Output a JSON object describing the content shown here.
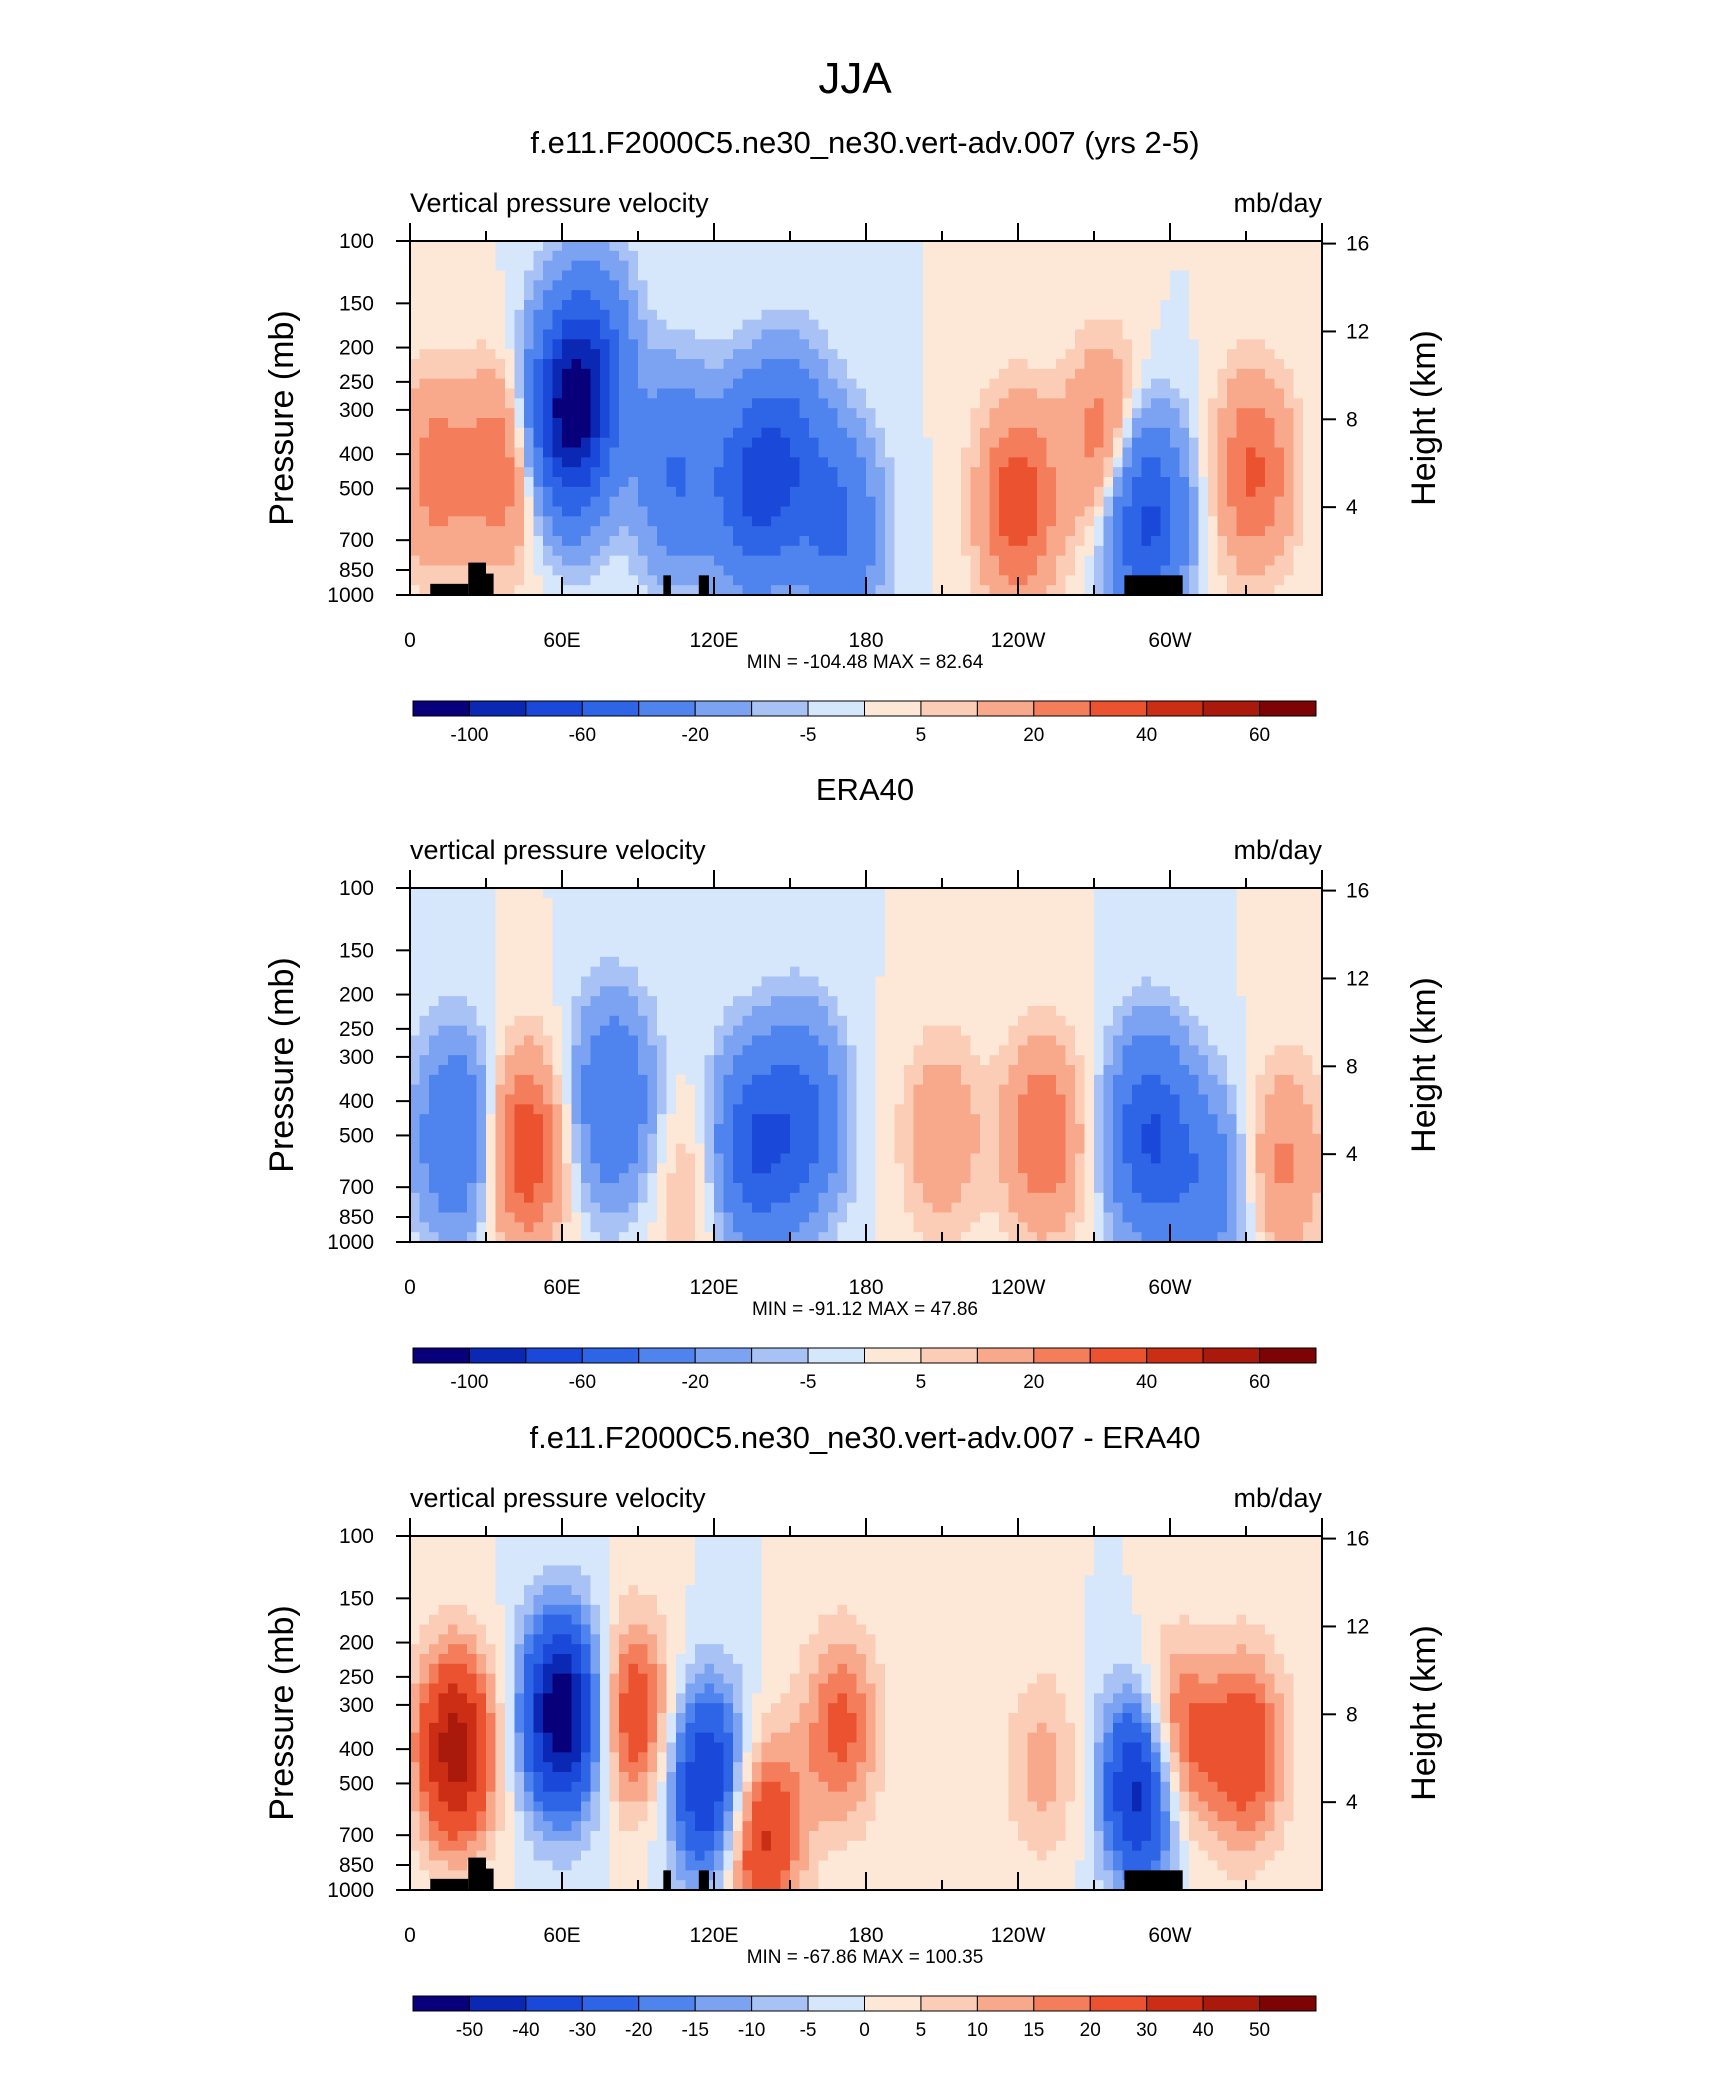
{
  "title": "JJA",
  "chart_data": [
    {
      "type": "heatmap",
      "title": "f.e11.F2000C5.ne30_ne30.vert-adv.007 (yrs 2-5)",
      "left_label": "Vertical pressure velocity",
      "right_label": "mb/day",
      "xlabel": "",
      "ylabel": "Pressure (mb)",
      "y2label": "Height (km)",
      "x_ticks": [
        "0",
        "60E",
        "120E",
        "180",
        "120W",
        "60W"
      ],
      "x_range": [
        0,
        360
      ],
      "y_ticks": [
        "100",
        "150",
        "200",
        "250",
        "300",
        "400",
        "500",
        "700",
        "850",
        "1000"
      ],
      "y_range": [
        1000,
        100
      ],
      "y_scale": "log",
      "y2_ticks": [
        "16",
        "12",
        "8",
        "4"
      ],
      "stats_text": "MIN = -104.48  MAX =  82.64",
      "min": -104.48,
      "max": 82.64,
      "colorbar_labels": [
        "-100",
        "-60",
        "-20",
        "-5",
        "5",
        "20",
        "40",
        "60"
      ],
      "colorbar_levels": [
        -120,
        -100,
        -80,
        -60,
        -40,
        -20,
        -10,
        -5,
        0,
        5,
        10,
        20,
        30,
        40,
        50,
        60,
        70
      ],
      "features": [
        {
          "lon": 10,
          "p": 450,
          "value": 25
        },
        {
          "lon": 38,
          "p": 430,
          "value": 30
        },
        {
          "lon": 62,
          "p": 320,
          "value": -95
        },
        {
          "lon": 72,
          "p": 220,
          "value": -45
        },
        {
          "lon": 105,
          "p": 450,
          "value": -40
        },
        {
          "lon": 135,
          "p": 500,
          "value": -55
        },
        {
          "lon": 150,
          "p": 400,
          "value": -40
        },
        {
          "lon": 170,
          "p": 650,
          "value": -40
        },
        {
          "lon": 240,
          "p": 550,
          "value": 38
        },
        {
          "lon": 275,
          "p": 380,
          "value": 32
        },
        {
          "lon": 290,
          "p": 600,
          "value": -70
        },
        {
          "lon": 333,
          "p": 450,
          "value": 32
        }
      ]
    },
    {
      "type": "heatmap",
      "title": "ERA40",
      "left_label": "vertical pressure velocity",
      "right_label": "mb/day",
      "xlabel": "",
      "ylabel": "Pressure (mb)",
      "y2label": "Height (km)",
      "x_ticks": [
        "0",
        "60E",
        "120E",
        "180",
        "120W",
        "60W"
      ],
      "x_range": [
        0,
        360
      ],
      "y_ticks": [
        "100",
        "150",
        "200",
        "250",
        "300",
        "400",
        "500",
        "700",
        "850",
        "1000"
      ],
      "y_range": [
        1000,
        100
      ],
      "y_scale": "log",
      "y2_ticks": [
        "16",
        "12",
        "8",
        "4"
      ],
      "stats_text": "MIN = -91.12  MAX =  47.86",
      "min": -91.12,
      "max": 47.86,
      "colorbar_labels": [
        "-100",
        "-60",
        "-20",
        "-5",
        "5",
        "20",
        "40",
        "60"
      ],
      "colorbar_levels": [
        -120,
        -100,
        -80,
        -60,
        -40,
        -20,
        -10,
        -5,
        0,
        5,
        10,
        20,
        30,
        40,
        50,
        60,
        70
      ],
      "features": [
        {
          "lon": 18,
          "p": 500,
          "value": -40
        },
        {
          "lon": 45,
          "p": 550,
          "value": 40
        },
        {
          "lon": 80,
          "p": 400,
          "value": -40
        },
        {
          "lon": 112,
          "p": 700,
          "value": 12
        },
        {
          "lon": 135,
          "p": 550,
          "value": -55
        },
        {
          "lon": 155,
          "p": 450,
          "value": -45
        },
        {
          "lon": 210,
          "p": 500,
          "value": 18
        },
        {
          "lon": 250,
          "p": 500,
          "value": 30
        },
        {
          "lon": 292,
          "p": 500,
          "value": -60
        },
        {
          "lon": 315,
          "p": 700,
          "value": -30
        },
        {
          "lon": 345,
          "p": 600,
          "value": 22
        }
      ]
    },
    {
      "type": "heatmap",
      "title": "f.e11.F2000C5.ne30_ne30.vert-adv.007 - ERA40",
      "left_label": "vertical pressure velocity",
      "right_label": "mb/day",
      "xlabel": "",
      "ylabel": "Pressure (mb)",
      "y2label": "Height (km)",
      "x_ticks": [
        "0",
        "60E",
        "120E",
        "180",
        "120W",
        "60W"
      ],
      "x_range": [
        0,
        360
      ],
      "y_ticks": [
        "100",
        "150",
        "200",
        "250",
        "300",
        "400",
        "500",
        "700",
        "850",
        "1000"
      ],
      "y_range": [
        1000,
        100
      ],
      "y_scale": "log",
      "y2_ticks": [
        "16",
        "12",
        "8",
        "4"
      ],
      "stats_text": "MIN = -67.86  MAX = 100.35",
      "min": -67.86,
      "max": 100.35,
      "colorbar_labels": [
        "-50",
        "-40",
        "-30",
        "-20",
        "-15",
        "-10",
        "-5",
        "0",
        "5",
        "10",
        "15",
        "20",
        "30",
        "40",
        "50"
      ],
      "colorbar_levels": [
        -60,
        -50,
        -40,
        -30,
        -20,
        -15,
        -10,
        -5,
        0,
        5,
        10,
        15,
        20,
        30,
        40,
        50,
        60
      ],
      "features": [
        {
          "lon": 18,
          "p": 400,
          "value": 45
        },
        {
          "lon": 60,
          "p": 320,
          "value": -60
        },
        {
          "lon": 88,
          "p": 320,
          "value": 28
        },
        {
          "lon": 118,
          "p": 500,
          "value": -45
        },
        {
          "lon": 138,
          "p": 700,
          "value": 35
        },
        {
          "lon": 170,
          "p": 350,
          "value": 22
        },
        {
          "lon": 250,
          "p": 450,
          "value": 12
        },
        {
          "lon": 290,
          "p": 500,
          "value": -60
        },
        {
          "lon": 300,
          "p": 400,
          "value": 40
        },
        {
          "lon": 330,
          "p": 400,
          "value": 28
        }
      ]
    }
  ]
}
